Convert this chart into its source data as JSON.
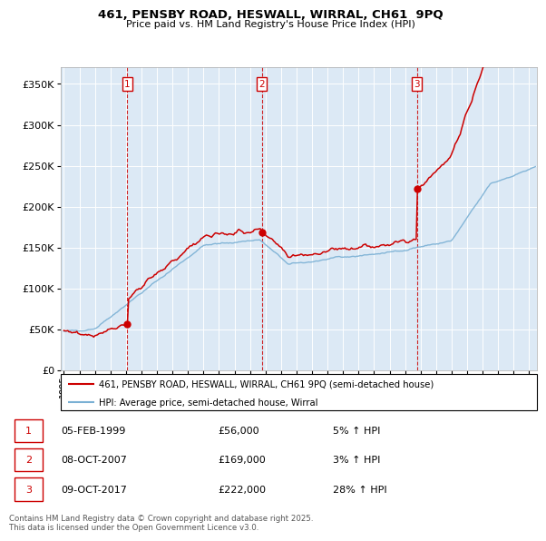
{
  "title": "461, PENSBY ROAD, HESWALL, WIRRAL, CH61  9PQ",
  "subtitle": "Price paid vs. HM Land Registry's House Price Index (HPI)",
  "legend_line1": "461, PENSBY ROAD, HESWALL, WIRRAL, CH61 9PQ (semi-detached house)",
  "legend_line2": "HPI: Average price, semi-detached house, Wirral",
  "sale_markers": [
    {
      "num": 1,
      "date_label": "05-FEB-1999",
      "price_label": "£56,000",
      "pct_label": "5% ↑ HPI",
      "year": 1999.09,
      "price": 56000
    },
    {
      "num": 2,
      "date_label": "08-OCT-2007",
      "price_label": "£169,000",
      "pct_label": "3% ↑ HPI",
      "year": 2007.77,
      "price": 169000
    },
    {
      "num": 3,
      "date_label": "09-OCT-2017",
      "price_label": "£222,000",
      "pct_label": "28% ↑ HPI",
      "year": 2017.77,
      "price": 222000
    }
  ],
  "footnote": "Contains HM Land Registry data © Crown copyright and database right 2025.\nThis data is licensed under the Open Government Licence v3.0.",
  "xlim": [
    1994.8,
    2025.5
  ],
  "ylim": [
    0,
    370000
  ],
  "yticks": [
    0,
    50000,
    100000,
    150000,
    200000,
    250000,
    300000,
    350000
  ],
  "xticks": [
    1995,
    1996,
    1997,
    1998,
    1999,
    2000,
    2001,
    2002,
    2003,
    2004,
    2005,
    2006,
    2007,
    2008,
    2009,
    2010,
    2011,
    2012,
    2013,
    2014,
    2015,
    2016,
    2017,
    2018,
    2019,
    2020,
    2021,
    2022,
    2023,
    2024,
    2025
  ],
  "property_color": "#cc0000",
  "hpi_color": "#7ab0d4",
  "chart_bg": "#dce9f5",
  "background_color": "#ffffff",
  "grid_color": "#ffffff",
  "marker_box_color": "#cc0000"
}
